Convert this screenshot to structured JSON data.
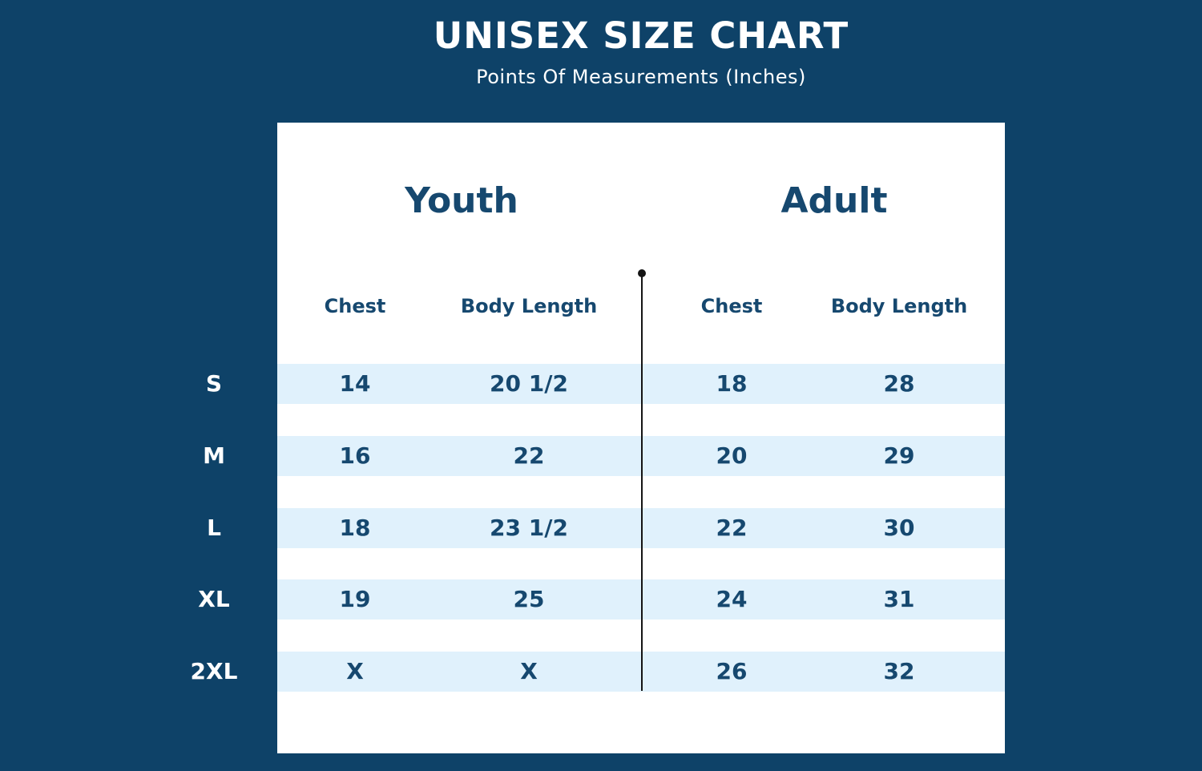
{
  "colors": {
    "background": "#0e4268",
    "card": "#ffffff",
    "stripe": "#e0f1fc",
    "navy_text": "#16486f",
    "white_text": "#ffffff",
    "divider": "#141414"
  },
  "header": {
    "title": "UNISEX SIZE CHART",
    "subtitle": "Points Of Measurements (Inches)"
  },
  "table": {
    "groups": {
      "youth": "Youth",
      "adult": "Adult"
    },
    "column_headers": {
      "youth_chest": "Chest",
      "youth_body_length": "Body Length",
      "adult_chest": "Chest",
      "adult_body_length": "Body Length"
    },
    "rows": [
      {
        "size": "S",
        "youth_chest": "14",
        "youth_body_length": "20 1/2",
        "adult_chest": "18",
        "adult_body_length": "28"
      },
      {
        "size": "M",
        "youth_chest": "16",
        "youth_body_length": "22",
        "adult_chest": "20",
        "adult_body_length": "29"
      },
      {
        "size": "L",
        "youth_chest": "18",
        "youth_body_length": "23 1/2",
        "adult_chest": "22",
        "adult_body_length": "30"
      },
      {
        "size": "XL",
        "youth_chest": "19",
        "youth_body_length": "25",
        "adult_chest": "24",
        "adult_body_length": "31"
      },
      {
        "size": "2XL",
        "youth_chest": "X",
        "youth_body_length": "X",
        "adult_chest": "26",
        "adult_body_length": "32"
      }
    ]
  },
  "chart_data": {
    "type": "table",
    "title": "UNISEX SIZE CHART",
    "subtitle": "Points Of Measurements (Inches)",
    "units": "Inches",
    "column_groups": [
      "Youth",
      "Adult"
    ],
    "columns": [
      "Size",
      "Youth Chest",
      "Youth Body Length",
      "Adult Chest",
      "Adult Body Length"
    ],
    "rows": [
      [
        "S",
        "14",
        "20 1/2",
        "18",
        "28"
      ],
      [
        "M",
        "16",
        "22",
        "20",
        "29"
      ],
      [
        "L",
        "18",
        "23 1/2",
        "22",
        "30"
      ],
      [
        "XL",
        "19",
        "25",
        "24",
        "31"
      ],
      [
        "2XL",
        "X",
        "X",
        "26",
        "32"
      ]
    ]
  }
}
